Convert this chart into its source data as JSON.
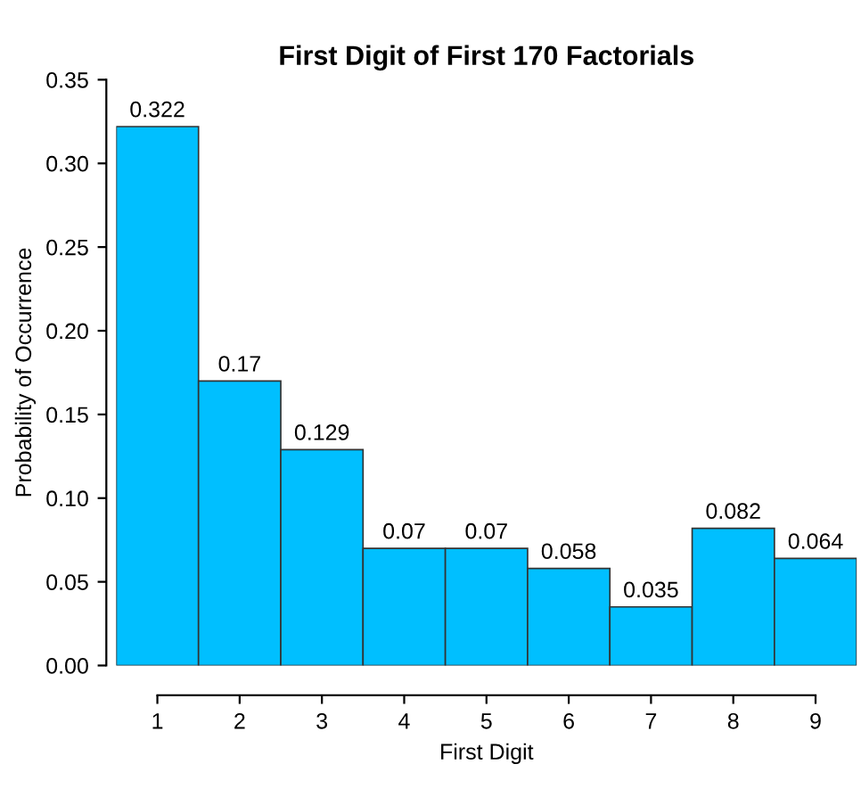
{
  "chart_data": {
    "type": "bar",
    "title": "First Digit of First 170 Factorials",
    "xlabel": "First Digit",
    "ylabel": "Probability of Occurrence",
    "categories": [
      "1",
      "2",
      "3",
      "4",
      "5",
      "6",
      "7",
      "8",
      "9"
    ],
    "values": [
      0.322,
      0.17,
      0.129,
      0.07,
      0.07,
      0.058,
      0.035,
      0.082,
      0.064
    ],
    "color": "#00bfff",
    "data_labels": true,
    "grid": false,
    "legend": false,
    "ylim": [
      0,
      0.35
    ],
    "yticks": [
      {
        "value": 0,
        "label": "0.00"
      },
      {
        "value": 0.05,
        "label": "0.05"
      },
      {
        "value": 0.1,
        "label": "0.10"
      },
      {
        "value": 0.15,
        "label": "0.15"
      },
      {
        "value": 0.2,
        "label": "0.20"
      },
      {
        "value": 0.25,
        "label": "0.25"
      },
      {
        "value": 0.3,
        "label": "0.30"
      },
      {
        "value": 0.35,
        "label": "0.35"
      }
    ]
  }
}
